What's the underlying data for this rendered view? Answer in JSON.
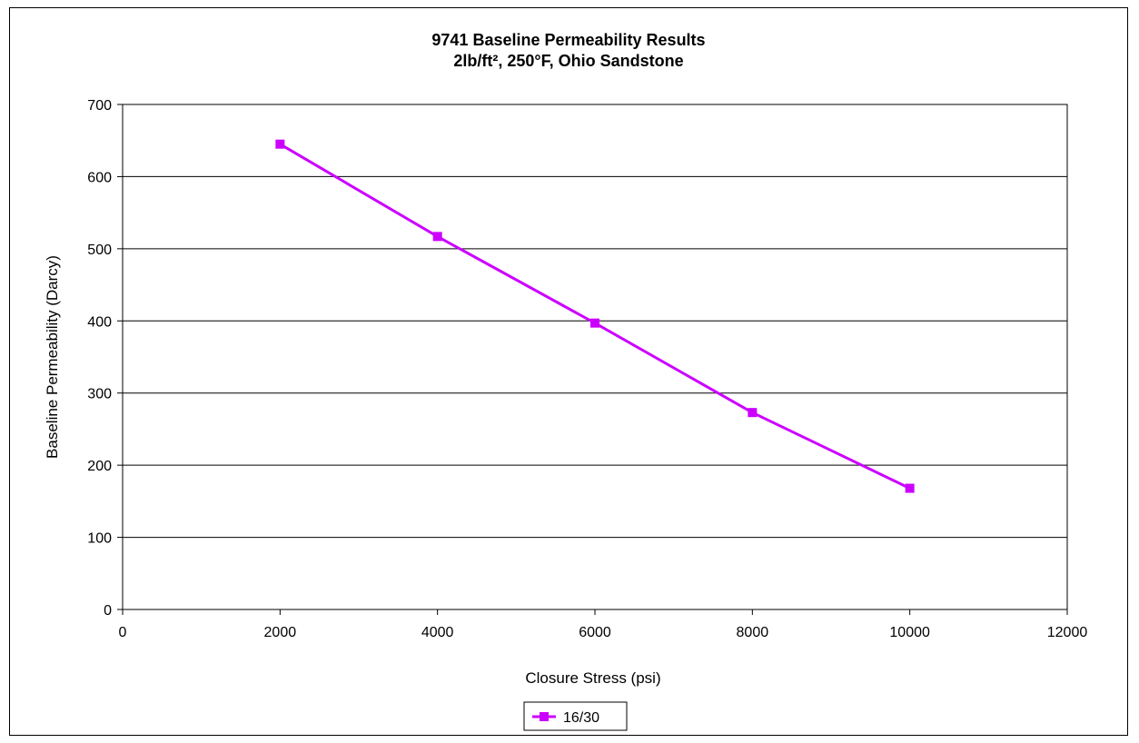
{
  "chart_data": {
    "type": "line",
    "title": "9741 Baseline Permeability Results",
    "subtitle": "2lb/ft², 250°F, Ohio Sandstone",
    "xlabel": "Closure Stress (psi)",
    "ylabel": "Baseline Permeability (Darcy)",
    "xlim": [
      0,
      12000
    ],
    "ylim": [
      0,
      700
    ],
    "x_ticks": [
      0,
      2000,
      4000,
      6000,
      8000,
      10000,
      12000
    ],
    "y_ticks": [
      0,
      100,
      200,
      300,
      400,
      500,
      600,
      700
    ],
    "grid": "horizontal",
    "legend_position": "bottom-center",
    "series": [
      {
        "name": "16/30",
        "color": "#cc00ff",
        "marker": "square",
        "x": [
          2000,
          4000,
          6000,
          8000,
          10000
        ],
        "values": [
          645,
          517,
          397,
          273,
          168
        ]
      }
    ]
  }
}
